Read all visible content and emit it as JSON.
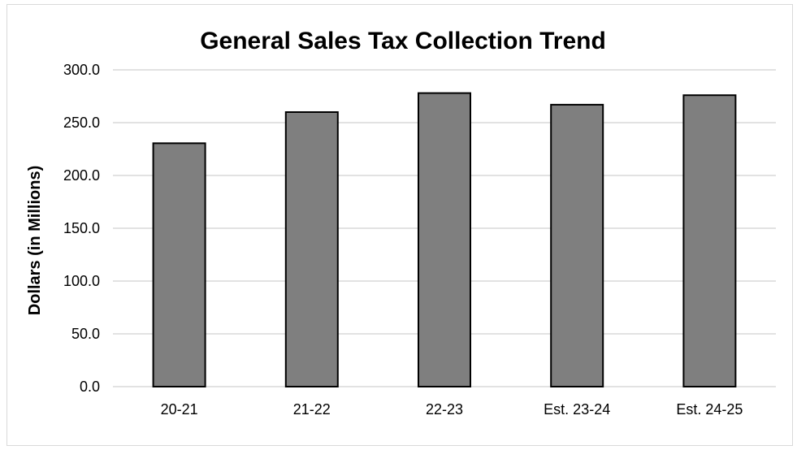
{
  "chart_data": {
    "type": "bar",
    "title": "General Sales Tax Collection Trend",
    "xlabel": "",
    "ylabel": "Dollars (in Millions)",
    "categories": [
      "20-21",
      "21-22",
      "22-23",
      "Est. 23-24",
      "Est. 24-25"
    ],
    "values": [
      230.5,
      260.0,
      278.0,
      267.0,
      276.0
    ],
    "ylim": [
      0,
      300
    ],
    "yticks": [
      0,
      50,
      100,
      150,
      200,
      250,
      300
    ],
    "ytick_labels": [
      "0.0",
      "50.0",
      "100.0",
      "150.0",
      "200.0",
      "250.0",
      "300.0"
    ],
    "grid": true,
    "legend": "none",
    "bar_color": "#7f7f7f",
    "bar_edge_color": "#000000",
    "grid_color": "#d9d9d9"
  }
}
